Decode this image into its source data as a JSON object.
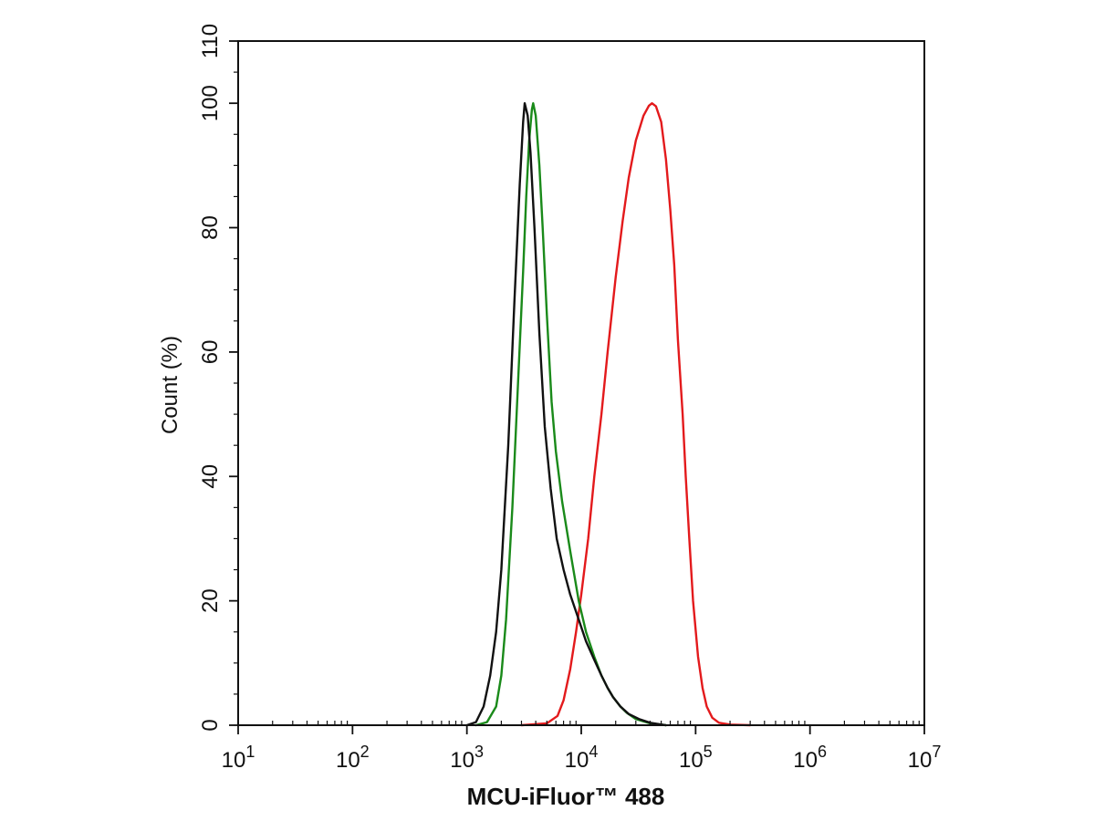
{
  "chart_data": {
    "type": "line",
    "title": "",
    "xlabel": "MCU-iFluor™ 488",
    "ylabel": "Count  (%)",
    "x_scale": "log",
    "xlim": [
      10,
      10000000
    ],
    "ylim": [
      0,
      110
    ],
    "x_ticks": [
      {
        "value": 10,
        "base": "10",
        "exp": "1"
      },
      {
        "value": 100,
        "base": "10",
        "exp": "2"
      },
      {
        "value": 1000,
        "base": "10",
        "exp": "3"
      },
      {
        "value": 10000,
        "base": "10",
        "exp": "4"
      },
      {
        "value": 100000,
        "base": "10",
        "exp": "5"
      },
      {
        "value": 1000000,
        "base": "10",
        "exp": "6"
      },
      {
        "value": 10000000,
        "base": "10",
        "exp": "7"
      }
    ],
    "y_ticks": [
      {
        "value": 0,
        "label": "0"
      },
      {
        "value": 20,
        "label": "20"
      },
      {
        "value": 40,
        "label": "40"
      },
      {
        "value": 60,
        "label": "60"
      },
      {
        "value": 80,
        "label": "80"
      },
      {
        "value": 100,
        "label": "100"
      },
      {
        "value": 110,
        "label": "110"
      }
    ],
    "grid": false,
    "legend": "none",
    "series": [
      {
        "color": "#e31a1c",
        "points": [
          [
            3000,
            0
          ],
          [
            5000,
            0.3
          ],
          [
            6200,
            1.5
          ],
          [
            7000,
            4
          ],
          [
            8000,
            9
          ],
          [
            9000,
            15
          ],
          [
            10000,
            21
          ],
          [
            11500,
            30
          ],
          [
            13000,
            40
          ],
          [
            15000,
            50
          ],
          [
            17000,
            60
          ],
          [
            20000,
            72
          ],
          [
            23000,
            81
          ],
          [
            26000,
            88
          ],
          [
            30000,
            94
          ],
          [
            35000,
            98
          ],
          [
            39000,
            99.6
          ],
          [
            41500,
            100
          ],
          [
            45000,
            99.5
          ],
          [
            50000,
            97
          ],
          [
            55000,
            91
          ],
          [
            60000,
            83
          ],
          [
            65000,
            74
          ],
          [
            70000,
            62
          ],
          [
            77000,
            50
          ],
          [
            82000,
            40
          ],
          [
            88000,
            30
          ],
          [
            95000,
            20
          ],
          [
            105000,
            11
          ],
          [
            115000,
            6
          ],
          [
            125000,
            3
          ],
          [
            140000,
            1.2
          ],
          [
            160000,
            0.4
          ],
          [
            200000,
            0.1
          ],
          [
            300000,
            0
          ]
        ]
      },
      {
        "color": "#1a8a1a",
        "points": [
          [
            1200,
            0
          ],
          [
            1500,
            0.5
          ],
          [
            1800,
            3
          ],
          [
            2000,
            8
          ],
          [
            2200,
            17
          ],
          [
            2500,
            35
          ],
          [
            2800,
            55
          ],
          [
            3100,
            73
          ],
          [
            3300,
            85
          ],
          [
            3500,
            94
          ],
          [
            3700,
            99
          ],
          [
            3800,
            100
          ],
          [
            4000,
            98
          ],
          [
            4300,
            90
          ],
          [
            4600,
            80
          ],
          [
            5000,
            66
          ],
          [
            5500,
            52
          ],
          [
            6000,
            44
          ],
          [
            6800,
            36
          ],
          [
            8000,
            28
          ],
          [
            9500,
            20
          ],
          [
            11000,
            15
          ],
          [
            13000,
            11
          ],
          [
            15000,
            8
          ],
          [
            17000,
            6
          ],
          [
            19000,
            4.5
          ],
          [
            22000,
            3
          ],
          [
            25000,
            2
          ],
          [
            30000,
            1
          ],
          [
            40000,
            0.3
          ],
          [
            55000,
            0
          ]
        ]
      },
      {
        "color": "#111111",
        "points": [
          [
            1000,
            0
          ],
          [
            1200,
            0.5
          ],
          [
            1400,
            3
          ],
          [
            1600,
            8
          ],
          [
            1800,
            15
          ],
          [
            2000,
            25
          ],
          [
            2300,
            45
          ],
          [
            2600,
            68
          ],
          [
            2900,
            87
          ],
          [
            3100,
            97
          ],
          [
            3200,
            100
          ],
          [
            3400,
            98
          ],
          [
            3600,
            92
          ],
          [
            3900,
            80
          ],
          [
            4300,
            63
          ],
          [
            4800,
            48
          ],
          [
            5400,
            38
          ],
          [
            6100,
            30
          ],
          [
            7000,
            25
          ],
          [
            8000,
            21
          ],
          [
            9500,
            17
          ],
          [
            11000,
            13.5
          ],
          [
            13000,
            10.5
          ],
          [
            15000,
            8
          ],
          [
            17000,
            6
          ],
          [
            19000,
            4.5
          ],
          [
            22000,
            3
          ],
          [
            26000,
            1.8
          ],
          [
            32000,
            1
          ],
          [
            40000,
            0.4
          ],
          [
            55000,
            0
          ]
        ]
      }
    ]
  }
}
